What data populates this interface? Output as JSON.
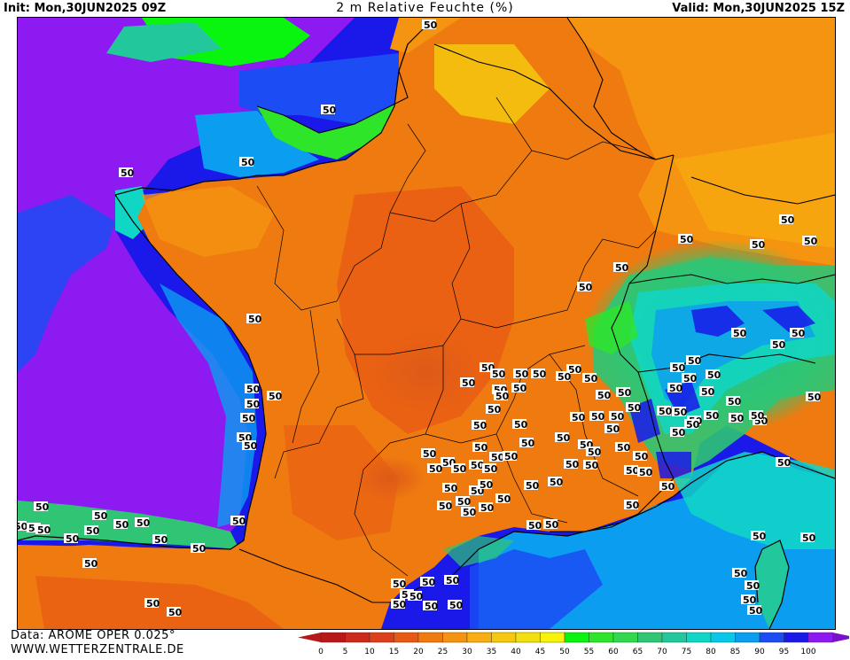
{
  "header": {
    "init_label": "Init: Mon,30JUN2025 09Z",
    "title": "2 m Relative Feuchte (%)",
    "valid_label": "Valid: Mon,30JUN2025 15Z"
  },
  "footer": {
    "data_source": "Data: AROME OPER 0.025°",
    "website": "WWW.WETTERZENTRALE.DE"
  },
  "map": {
    "region": "France",
    "contour_label": "50",
    "contour_level_percent": 50
  },
  "legend": {
    "unit": "%",
    "ticks": [
      "0",
      "5",
      "10",
      "15",
      "20",
      "25",
      "30",
      "35",
      "40",
      "45",
      "50",
      "55",
      "60",
      "65",
      "70",
      "75",
      "80",
      "85",
      "90",
      "95",
      "100"
    ],
    "colors": [
      "#b81818",
      "#cc2a1a",
      "#dd3f1a",
      "#e85a14",
      "#ef7a10",
      "#f49410",
      "#f8ad10",
      "#f6c810",
      "#f3e010",
      "#f7f30a",
      "#09f40f",
      "#2ee52a",
      "#33d94c",
      "#2fc574",
      "#22c79c",
      "#10d6c6",
      "#08c8e8",
      "#0b9ef0",
      "#1b4cf4",
      "#1a19ea",
      "#8d1af0",
      "#7a10c8"
    ],
    "arrow_left_color": "#b81818",
    "arrow_right_color": "#7a10c8"
  }
}
